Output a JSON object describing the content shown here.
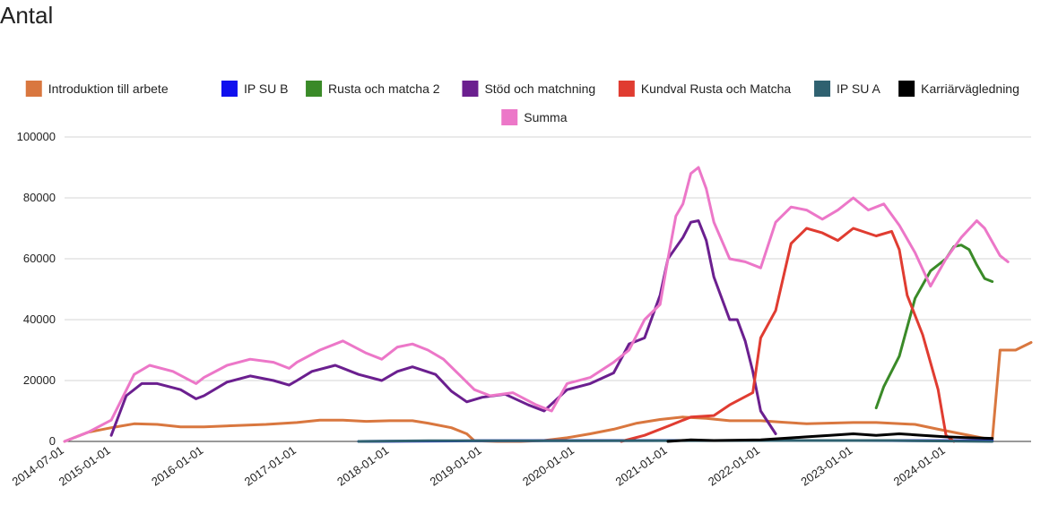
{
  "chart_data": {
    "type": "line",
    "title": "",
    "ylabel": "Antal",
    "xlabel": "",
    "ylim": [
      0,
      100000
    ],
    "y_ticks": [
      0,
      20000,
      40000,
      60000,
      80000,
      100000
    ],
    "y_tick_labels": [
      "0",
      "20000",
      "40000",
      "60000",
      "80000",
      "100000"
    ],
    "x_range": [
      "2014-07-01",
      "2024-12-01"
    ],
    "x_ticks": [
      "2014-07-01",
      "2015-01-01",
      "2016-01-01",
      "2017-01-01",
      "2018-01-01",
      "2019-01-01",
      "2020-01-01",
      "2021-01-01",
      "2022-01-01",
      "2023-01-01",
      "2024-01-01"
    ],
    "grid": true,
    "legend_position": "top",
    "series": [
      {
        "name": "Introduktion till arbete",
        "color": "#d9773f",
        "points": [
          [
            "2014-07-01",
            0
          ],
          [
            "2014-10-01",
            3000
          ],
          [
            "2015-01-01",
            4500
          ],
          [
            "2015-04-01",
            5800
          ],
          [
            "2015-07-01",
            5600
          ],
          [
            "2015-10-01",
            4800
          ],
          [
            "2016-01-01",
            4800
          ],
          [
            "2016-06-01",
            5300
          ],
          [
            "2016-09-01",
            5600
          ],
          [
            "2017-01-01",
            6200
          ],
          [
            "2017-04-01",
            7000
          ],
          [
            "2017-07-01",
            7000
          ],
          [
            "2017-10-01",
            6600
          ],
          [
            "2018-01-01",
            6800
          ],
          [
            "2018-04-01",
            6800
          ],
          [
            "2018-06-01",
            6000
          ],
          [
            "2018-09-01",
            4500
          ],
          [
            "2018-11-01",
            2500
          ],
          [
            "2018-12-01",
            200
          ],
          [
            "2019-03-01",
            0
          ],
          [
            "2019-06-01",
            0
          ],
          [
            "2019-09-01",
            300
          ],
          [
            "2019-12-01",
            1200
          ],
          [
            "2020-03-01",
            2500
          ],
          [
            "2020-06-01",
            4000
          ],
          [
            "2020-09-01",
            6000
          ],
          [
            "2020-12-01",
            7200
          ],
          [
            "2021-03-01",
            8000
          ],
          [
            "2021-06-01",
            7600
          ],
          [
            "2021-09-01",
            6800
          ],
          [
            "2022-01-01",
            6800
          ],
          [
            "2022-04-01",
            6300
          ],
          [
            "2022-07-01",
            5800
          ],
          [
            "2023-01-01",
            6200
          ],
          [
            "2023-04-01",
            6200
          ],
          [
            "2023-09-01",
            5600
          ],
          [
            "2023-12-01",
            4000
          ],
          [
            "2024-03-01",
            2500
          ],
          [
            "2024-06-01",
            1000
          ],
          [
            "2024-07-01",
            500
          ],
          [
            "2024-08-01",
            30000
          ],
          [
            "2024-10-01",
            30000
          ],
          [
            "2024-12-01",
            32500
          ]
        ]
      },
      {
        "name": "IP SU B",
        "color": "#1010ee",
        "points": [
          [
            "2017-09-01",
            0
          ],
          [
            "2019-01-01",
            200
          ],
          [
            "2021-01-01",
            300
          ],
          [
            "2023-01-01",
            300
          ],
          [
            "2024-07-01",
            200
          ]
        ]
      },
      {
        "name": "Rusta och matcha 2",
        "color": "#3a8a28",
        "points": [
          [
            "2023-04-01",
            11000
          ],
          [
            "2023-05-01",
            18000
          ],
          [
            "2023-07-01",
            28000
          ],
          [
            "2023-09-01",
            47000
          ],
          [
            "2023-11-01",
            56000
          ],
          [
            "2024-01-01",
            60000
          ],
          [
            "2024-02-01",
            64000
          ],
          [
            "2024-03-01",
            64500
          ],
          [
            "2024-04-01",
            63000
          ],
          [
            "2024-05-01",
            58000
          ],
          [
            "2024-06-01",
            53500
          ],
          [
            "2024-07-01",
            52500
          ]
        ]
      },
      {
        "name": "Stöd och matchning",
        "color": "#6b1f8f",
        "points": [
          [
            "2015-01-01",
            2000
          ],
          [
            "2015-03-01",
            15000
          ],
          [
            "2015-05-01",
            19000
          ],
          [
            "2015-07-01",
            19000
          ],
          [
            "2015-10-01",
            17000
          ],
          [
            "2015-12-01",
            14000
          ],
          [
            "2016-01-01",
            15000
          ],
          [
            "2016-04-01",
            19500
          ],
          [
            "2016-07-01",
            21500
          ],
          [
            "2016-10-01",
            20000
          ],
          [
            "2016-12-01",
            18500
          ],
          [
            "2017-01-01",
            20000
          ],
          [
            "2017-03-01",
            23000
          ],
          [
            "2017-06-01",
            25000
          ],
          [
            "2017-09-01",
            22000
          ],
          [
            "2017-12-01",
            20000
          ],
          [
            "2018-02-01",
            23000
          ],
          [
            "2018-04-01",
            24500
          ],
          [
            "2018-07-01",
            22000
          ],
          [
            "2018-09-01",
            16500
          ],
          [
            "2018-11-01",
            13000
          ],
          [
            "2019-01-01",
            14500
          ],
          [
            "2019-04-01",
            15500
          ],
          [
            "2019-07-01",
            12000
          ],
          [
            "2019-09-01",
            10000
          ],
          [
            "2019-12-01",
            17000
          ],
          [
            "2020-03-01",
            19000
          ],
          [
            "2020-06-01",
            22500
          ],
          [
            "2020-08-01",
            32000
          ],
          [
            "2020-10-01",
            34000
          ],
          [
            "2020-12-01",
            48000
          ],
          [
            "2021-01-01",
            60000
          ],
          [
            "2021-03-01",
            67000
          ],
          [
            "2021-04-01",
            72000
          ],
          [
            "2021-05-01",
            72500
          ],
          [
            "2021-06-01",
            66000
          ],
          [
            "2021-07-01",
            54000
          ],
          [
            "2021-09-01",
            40000
          ],
          [
            "2021-10-01",
            40000
          ],
          [
            "2021-11-01",
            33000
          ],
          [
            "2021-12-01",
            23000
          ],
          [
            "2022-01-01",
            10000
          ],
          [
            "2022-03-01",
            2500
          ]
        ]
      },
      {
        "name": "Kundval Rusta och Matcha",
        "color": "#e03c31",
        "points": [
          [
            "2020-07-01",
            0
          ],
          [
            "2020-10-01",
            2000
          ],
          [
            "2021-01-01",
            5000
          ],
          [
            "2021-04-01",
            8000
          ],
          [
            "2021-07-01",
            8500
          ],
          [
            "2021-09-01",
            12000
          ],
          [
            "2021-12-01",
            16000
          ],
          [
            "2022-01-01",
            34000
          ],
          [
            "2022-03-01",
            43000
          ],
          [
            "2022-05-01",
            65000
          ],
          [
            "2022-07-01",
            70000
          ],
          [
            "2022-09-01",
            68500
          ],
          [
            "2022-11-01",
            66000
          ],
          [
            "2023-01-01",
            70000
          ],
          [
            "2023-04-01",
            67500
          ],
          [
            "2023-06-01",
            69000
          ],
          [
            "2023-07-01",
            63000
          ],
          [
            "2023-08-01",
            48000
          ],
          [
            "2023-10-01",
            35000
          ],
          [
            "2023-12-01",
            17000
          ],
          [
            "2024-01-01",
            2000
          ],
          [
            "2024-02-01",
            0
          ]
        ]
      },
      {
        "name": "IP SU A",
        "color": "#2f6170",
        "points": [
          [
            "2017-09-01",
            0
          ],
          [
            "2018-06-01",
            200
          ],
          [
            "2020-01-01",
            200
          ],
          [
            "2022-01-01",
            300
          ],
          [
            "2023-06-01",
            300
          ],
          [
            "2024-07-01",
            0
          ]
        ]
      },
      {
        "name": "Karriärvägledning",
        "color": "#000000",
        "points": [
          [
            "2021-01-01",
            0
          ],
          [
            "2021-04-01",
            500
          ],
          [
            "2021-07-01",
            300
          ],
          [
            "2022-01-01",
            500
          ],
          [
            "2022-07-01",
            1500
          ],
          [
            "2022-10-01",
            2000
          ],
          [
            "2023-01-01",
            2500
          ],
          [
            "2023-04-01",
            2000
          ],
          [
            "2023-07-01",
            2500
          ],
          [
            "2023-10-01",
            2000
          ],
          [
            "2024-01-01",
            1500
          ],
          [
            "2024-04-01",
            1200
          ],
          [
            "2024-07-01",
            1000
          ]
        ]
      },
      {
        "name": "Summa",
        "color": "#ec77c8",
        "points": [
          [
            "2014-07-01",
            0
          ],
          [
            "2014-10-01",
            3000
          ],
          [
            "2015-01-01",
            7000
          ],
          [
            "2015-04-01",
            22000
          ],
          [
            "2015-06-01",
            25000
          ],
          [
            "2015-09-01",
            23000
          ],
          [
            "2015-12-01",
            19000
          ],
          [
            "2016-01-01",
            21000
          ],
          [
            "2016-04-01",
            25000
          ],
          [
            "2016-07-01",
            27000
          ],
          [
            "2016-10-01",
            26000
          ],
          [
            "2016-12-01",
            24000
          ],
          [
            "2017-01-01",
            26000
          ],
          [
            "2017-04-01",
            30000
          ],
          [
            "2017-07-01",
            33000
          ],
          [
            "2017-10-01",
            29000
          ],
          [
            "2017-12-01",
            27000
          ],
          [
            "2018-02-01",
            31000
          ],
          [
            "2018-04-01",
            32000
          ],
          [
            "2018-06-01",
            30000
          ],
          [
            "2018-08-01",
            27000
          ],
          [
            "2018-10-01",
            22000
          ],
          [
            "2018-12-01",
            17000
          ],
          [
            "2019-02-01",
            15000
          ],
          [
            "2019-05-01",
            16000
          ],
          [
            "2019-08-01",
            12000
          ],
          [
            "2019-10-01",
            10000
          ],
          [
            "2019-12-01",
            19000
          ],
          [
            "2020-03-01",
            21000
          ],
          [
            "2020-06-01",
            26000
          ],
          [
            "2020-08-01",
            30000
          ],
          [
            "2020-10-01",
            40000
          ],
          [
            "2020-12-01",
            45000
          ],
          [
            "2021-01-01",
            60000
          ],
          [
            "2021-02-01",
            74000
          ],
          [
            "2021-03-01",
            78000
          ],
          [
            "2021-04-01",
            88000
          ],
          [
            "2021-05-01",
            90000
          ],
          [
            "2021-06-01",
            83000
          ],
          [
            "2021-07-01",
            72000
          ],
          [
            "2021-09-01",
            60000
          ],
          [
            "2021-11-01",
            59000
          ],
          [
            "2022-01-01",
            57000
          ],
          [
            "2022-03-01",
            72000
          ],
          [
            "2022-05-01",
            77000
          ],
          [
            "2022-07-01",
            76000
          ],
          [
            "2022-09-01",
            73000
          ],
          [
            "2022-11-01",
            76000
          ],
          [
            "2023-01-01",
            80000
          ],
          [
            "2023-03-01",
            76000
          ],
          [
            "2023-05-01",
            78000
          ],
          [
            "2023-07-01",
            71000
          ],
          [
            "2023-09-01",
            62000
          ],
          [
            "2023-11-01",
            51000
          ],
          [
            "2024-01-01",
            60000
          ],
          [
            "2024-03-01",
            67000
          ],
          [
            "2024-05-01",
            72500
          ],
          [
            "2024-06-01",
            70000
          ],
          [
            "2024-08-01",
            61000
          ],
          [
            "2024-09-01",
            59000
          ]
        ]
      }
    ]
  }
}
